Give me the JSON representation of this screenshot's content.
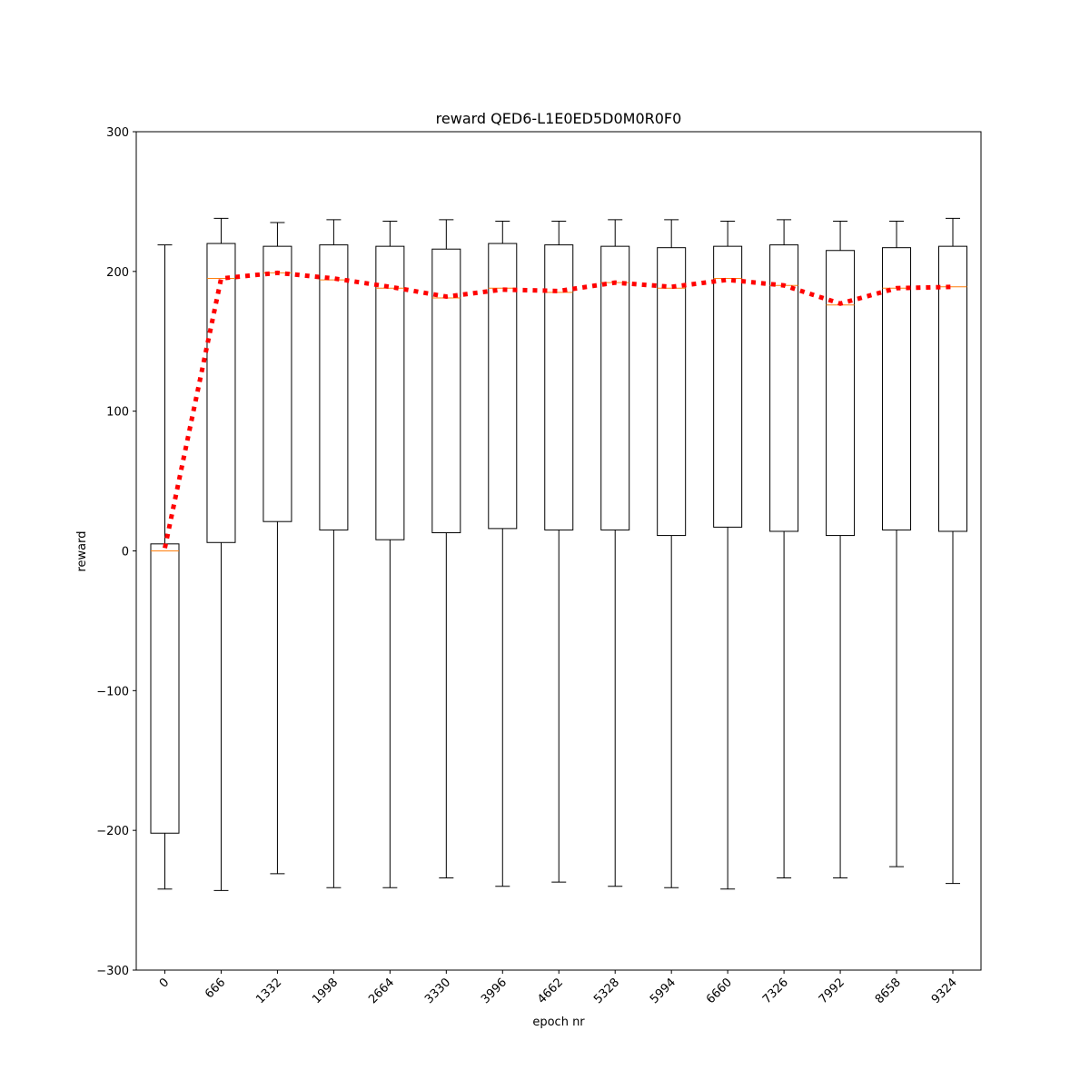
{
  "chart_data": {
    "type": "box",
    "title": "reward QED6-L1E0ED5D0M0R0F0",
    "xlabel": "epoch nr",
    "ylabel": "reward",
    "ylim": [
      -300,
      300
    ],
    "yticks": [
      -300,
      -200,
      -100,
      0,
      100,
      200,
      300
    ],
    "categories": [
      "0",
      "666",
      "1332",
      "1998",
      "2664",
      "3330",
      "3996",
      "4662",
      "5328",
      "5994",
      "6660",
      "7326",
      "7992",
      "8658",
      "9324"
    ],
    "boxes": [
      {
        "whisker_low": -242,
        "q1": -202,
        "median": 0,
        "q3": 5,
        "whisker_high": 219
      },
      {
        "whisker_low": -243,
        "q1": 6,
        "median": 195,
        "q3": 220,
        "whisker_high": 238
      },
      {
        "whisker_low": -231,
        "q1": 21,
        "median": 199,
        "q3": 218,
        "whisker_high": 235
      },
      {
        "whisker_low": -241,
        "q1": 15,
        "median": 194,
        "q3": 219,
        "whisker_high": 237
      },
      {
        "whisker_low": -241,
        "q1": 8,
        "median": 188,
        "q3": 218,
        "whisker_high": 236
      },
      {
        "whisker_low": -234,
        "q1": 13,
        "median": 181,
        "q3": 216,
        "whisker_high": 237
      },
      {
        "whisker_low": -240,
        "q1": 16,
        "median": 188,
        "q3": 220,
        "whisker_high": 236
      },
      {
        "whisker_low": -237,
        "q1": 15,
        "median": 185,
        "q3": 219,
        "whisker_high": 236
      },
      {
        "whisker_low": -240,
        "q1": 15,
        "median": 192,
        "q3": 218,
        "whisker_high": 237
      },
      {
        "whisker_low": -241,
        "q1": 11,
        "median": 188,
        "q3": 217,
        "whisker_high": 237
      },
      {
        "whisker_low": -242,
        "q1": 17,
        "median": 195,
        "q3": 218,
        "whisker_high": 236
      },
      {
        "whisker_low": -234,
        "q1": 14,
        "median": 190,
        "q3": 219,
        "whisker_high": 237
      },
      {
        "whisker_low": -234,
        "q1": 11,
        "median": 176,
        "q3": 215,
        "whisker_high": 236
      },
      {
        "whisker_low": -226,
        "q1": 15,
        "median": 188,
        "q3": 217,
        "whisker_high": 236
      },
      {
        "whisker_low": -238,
        "q1": 14,
        "median": 189,
        "q3": 218,
        "whisker_high": 238
      }
    ],
    "trend_line": {
      "style": "dotted",
      "values": [
        2,
        195,
        199,
        195,
        189,
        182,
        187,
        186,
        192,
        189,
        194,
        190,
        177,
        188,
        189
      ]
    },
    "grid": false,
    "colors": {
      "box": "#000000",
      "median": "#ff7f0e",
      "trend": "#ff0000"
    }
  }
}
